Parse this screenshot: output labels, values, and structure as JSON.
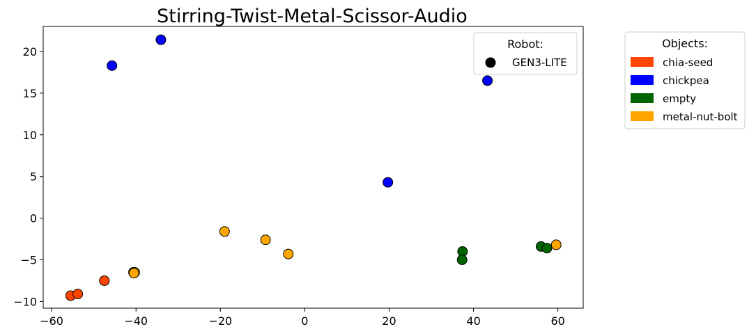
{
  "chart_data": {
    "type": "scatter",
    "title": "Stirring-Twist-Metal-Scissor-Audio",
    "xlabel": "",
    "ylabel": "",
    "xlim": [
      -62,
      66
    ],
    "ylim": [
      -10.8,
      23
    ],
    "xticks": [
      -60,
      -40,
      -20,
      0,
      20,
      40,
      60
    ],
    "xtick_labels": [
      "−60",
      "−40",
      "−20",
      "0",
      "20",
      "40",
      "60"
    ],
    "yticks": [
      -10,
      -5,
      0,
      5,
      10,
      15,
      20
    ],
    "ytick_labels": [
      "−10",
      "−5",
      "0",
      "5",
      "10",
      "15",
      "20"
    ],
    "grid": false,
    "robot_legend": {
      "title": "Robot:",
      "placement": "top-right",
      "entries": [
        {
          "label": "GEN3-LITE",
          "marker": "circle",
          "color": "#000000"
        }
      ]
    },
    "object_legend": {
      "title": "Objects:",
      "placement": "outside-right",
      "entries": [
        {
          "label": "chia-seed",
          "color": "#ff4500"
        },
        {
          "label": "chickpea",
          "color": "#0000ff"
        },
        {
          "label": "empty",
          "color": "#006400"
        },
        {
          "label": "metal-nut-bolt",
          "color": "#ffa500"
        }
      ]
    },
    "series": [
      {
        "name": "chia-seed",
        "color": "#ff4500",
        "points": [
          [
            -55.5,
            -9.3
          ],
          [
            -53.8,
            -9.1
          ],
          [
            -47.5,
            -7.5
          ]
        ]
      },
      {
        "name": "chickpea",
        "color": "#0000ff",
        "points": [
          [
            -45.7,
            18.3
          ],
          [
            -34.1,
            21.4
          ],
          [
            43.3,
            16.5
          ],
          [
            19.7,
            4.3
          ]
        ]
      },
      {
        "name": "empty",
        "color": "#006400",
        "points": [
          [
            37.4,
            -4.0
          ],
          [
            37.3,
            -5.0
          ],
          [
            56.0,
            -3.4
          ],
          [
            57.4,
            -3.6
          ]
        ]
      },
      {
        "name": "metal-nut-bolt",
        "color": "#ffa500",
        "points": [
          [
            -40.6,
            -6.5
          ],
          [
            -40.3,
            -6.5
          ],
          [
            -40.5,
            -6.6
          ],
          [
            -19.0,
            -1.6
          ],
          [
            -9.3,
            -2.6
          ],
          [
            -3.9,
            -4.3
          ],
          [
            59.6,
            -3.2
          ]
        ]
      }
    ]
  }
}
